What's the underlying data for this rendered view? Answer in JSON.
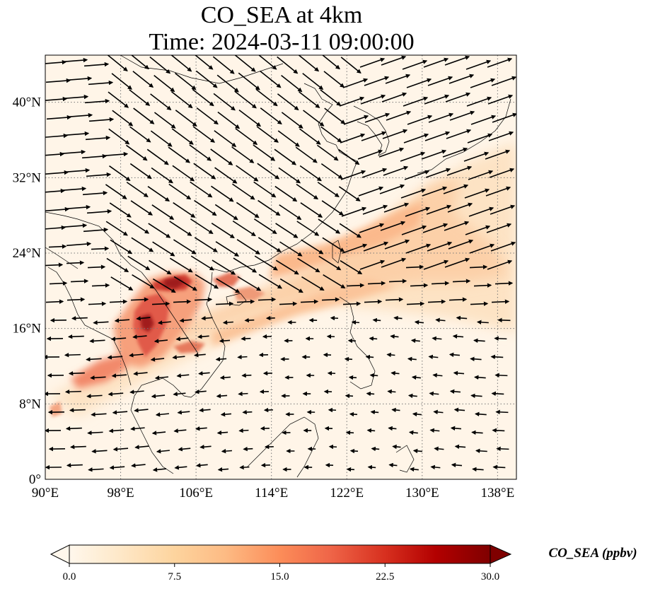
{
  "title": {
    "line1": "CO_SEA at 4km",
    "line2": "Time: 2024-03-11 09:00:00"
  },
  "map": {
    "projection": "PlateCarree",
    "lon_range": [
      90,
      140
    ],
    "lat_range": [
      0,
      45
    ],
    "gridlines": "dotted",
    "lon_ticks": [
      {
        "value": 90,
        "label": "90°E"
      },
      {
        "value": 98,
        "label": "98°E"
      },
      {
        "value": 106,
        "label": "106°E"
      },
      {
        "value": 114,
        "label": "114°E"
      },
      {
        "value": 122,
        "label": "122°E"
      },
      {
        "value": 130,
        "label": "130°E"
      },
      {
        "value": 138,
        "label": "138°E"
      }
    ],
    "lat_ticks": [
      {
        "value": 0,
        "label": "0°"
      },
      {
        "value": 8,
        "label": "8°N"
      },
      {
        "value": 16,
        "label": "16°N"
      },
      {
        "value": 24,
        "label": "24°N"
      },
      {
        "value": 32,
        "label": "32°N"
      },
      {
        "value": 40,
        "label": "40°N"
      }
    ],
    "wind_vectors": "overlay"
  },
  "colorbar": {
    "label": "CO_SEA (ppbv)",
    "colormap": "OrRd",
    "extend": "both",
    "range": [
      0,
      30
    ],
    "ticks": [
      {
        "value": 0,
        "label": "0.0"
      },
      {
        "value": 7.5,
        "label": "7.5"
      },
      {
        "value": 15,
        "label": "15.0"
      },
      {
        "value": 22.5,
        "label": "22.5"
      },
      {
        "value": 30,
        "label": "30.0"
      }
    ],
    "colors": [
      "#fff7ec",
      "#fee8c8",
      "#fdd49e",
      "#fdbb84",
      "#fc8d59",
      "#ef6548",
      "#d7301f",
      "#b30000",
      "#7f0000"
    ]
  }
}
